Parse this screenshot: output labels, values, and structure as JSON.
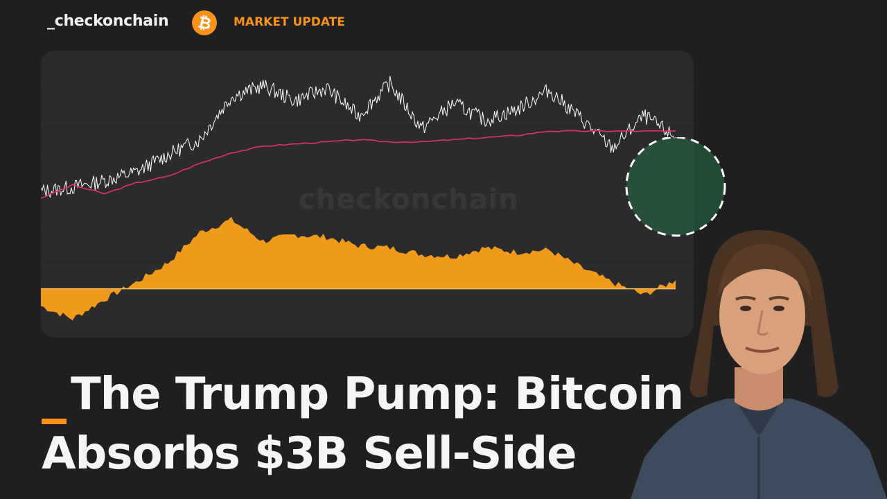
{
  "header": {
    "brand": "_checkonchain",
    "btc_symbol": "₿",
    "category": "MARKET UPDATE"
  },
  "title": {
    "line1": "The Trump Pump: Bitcoin",
    "line2": "Absorbs $3B Sell-Side"
  },
  "chart_watermark": "checkonchain",
  "colors": {
    "accent": "#f7931a",
    "background": "#1f1f1f",
    "chart_bg": "#2b2b2d",
    "price_line": "#ffffff",
    "moving_average": "#e0306a",
    "oscillator_fill": "#f09a1c",
    "highlight": "#1f5a38"
  },
  "chart_data": {
    "type": "line",
    "title": "",
    "xlabel": "",
    "ylabel": "",
    "grid": false,
    "x": [
      0,
      5,
      10,
      15,
      20,
      25,
      30,
      35,
      40,
      45,
      50,
      55,
      60,
      65,
      70,
      75,
      80,
      85,
      90,
      95,
      100
    ],
    "series": [
      {
        "values": [
          45,
          47,
          50,
          54,
          62,
          69,
          89,
          94,
          87,
          93,
          80,
          95,
          74,
          86,
          78,
          83,
          92,
          79,
          65,
          80,
          70
        ]
      },
      {
        "values": [
          42,
          48,
          44,
          49,
          52,
          58,
          63,
          66,
          67,
          68,
          69,
          68,
          68,
          69,
          70,
          71,
          73,
          73,
          73,
          73,
          73
        ]
      },
      {
        "values": [
          -8,
          -14,
          -5,
          3,
          12,
          26,
          32,
          22,
          25,
          24,
          20,
          19,
          16,
          15,
          19,
          17,
          18,
          10,
          3,
          -3,
          4
        ]
      }
    ],
    "annotations": [
      {
        "label": "highlight",
        "x": 97,
        "shape": "circle"
      }
    ]
  },
  "icons": {
    "bitcoin": "bitcoin-icon",
    "presenter": "presenter-photo"
  }
}
